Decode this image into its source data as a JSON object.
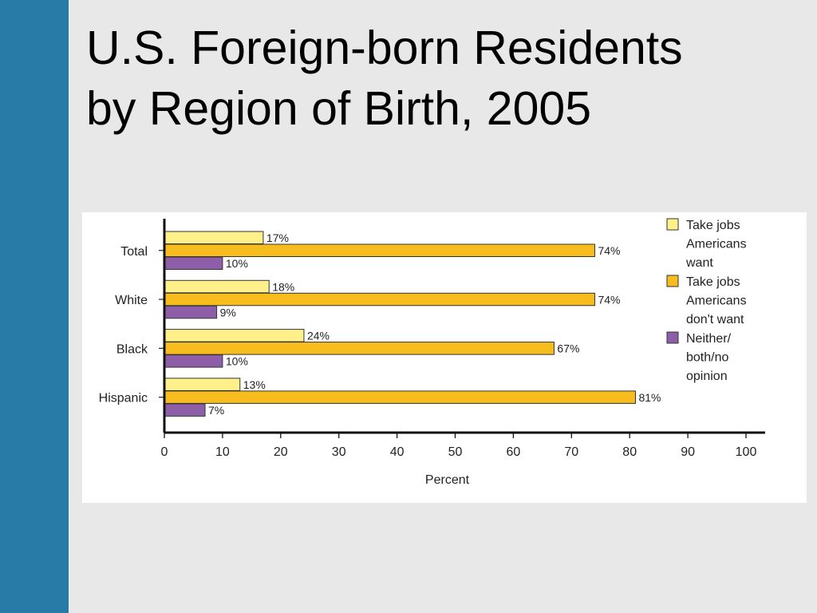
{
  "slide": {
    "title_line1": "U.S. Foreign-born Residents",
    "title_line2": "by Region of Birth, 2005"
  },
  "colors": {
    "sidebar": "#277ba6",
    "background": "#e8e8e8",
    "series": [
      "#fff08a",
      "#f7bc1d",
      "#8e5fa8"
    ]
  },
  "chart_data": {
    "type": "bar",
    "orientation": "horizontal",
    "categories": [
      "Total",
      "White",
      "Black",
      "Hispanic"
    ],
    "series": [
      {
        "name": "Take jobs Americans want",
        "values": [
          17,
          18,
          24,
          13
        ],
        "labels": [
          "17%",
          "18%",
          "24%",
          "13%"
        ]
      },
      {
        "name": "Take jobs Americans don't want",
        "values": [
          74,
          74,
          67,
          81
        ],
        "labels": [
          "74%",
          "74%",
          "67%",
          "81%"
        ]
      },
      {
        "name": "Neither/ both/no opinion",
        "values": [
          10,
          9,
          10,
          7
        ],
        "labels": [
          "10%",
          "9%",
          "10%",
          "7%"
        ]
      }
    ],
    "legend_lines": [
      [
        "Take jobs",
        "Americans",
        "want"
      ],
      [
        "Take jobs",
        "Americans",
        "don't want"
      ],
      [
        "Neither/",
        "both/no",
        "opinion"
      ]
    ],
    "xlabel": "Percent",
    "xlim": [
      0,
      100
    ],
    "xticks": [
      "0",
      "10",
      "20",
      "30",
      "40",
      "50",
      "60",
      "70",
      "80",
      "90",
      "100"
    ],
    "grid": false,
    "legend_position": "right"
  }
}
